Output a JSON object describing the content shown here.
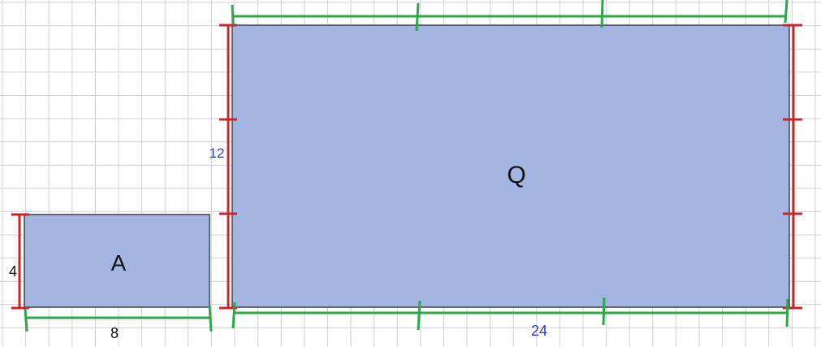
{
  "colors": {
    "grid": "#d0d0d0",
    "fill": "#a3b6e2",
    "outline": "#404040",
    "red_marker": "#c8262b",
    "green_marker": "#2ca84a",
    "dim_blue": "#2b3fc4",
    "dim_black": "#111111"
  },
  "rect_a": {
    "name": "A",
    "height_label": "4",
    "width_label": "8"
  },
  "rect_q": {
    "name": "Q",
    "height_label": "12",
    "width_label": "24"
  }
}
